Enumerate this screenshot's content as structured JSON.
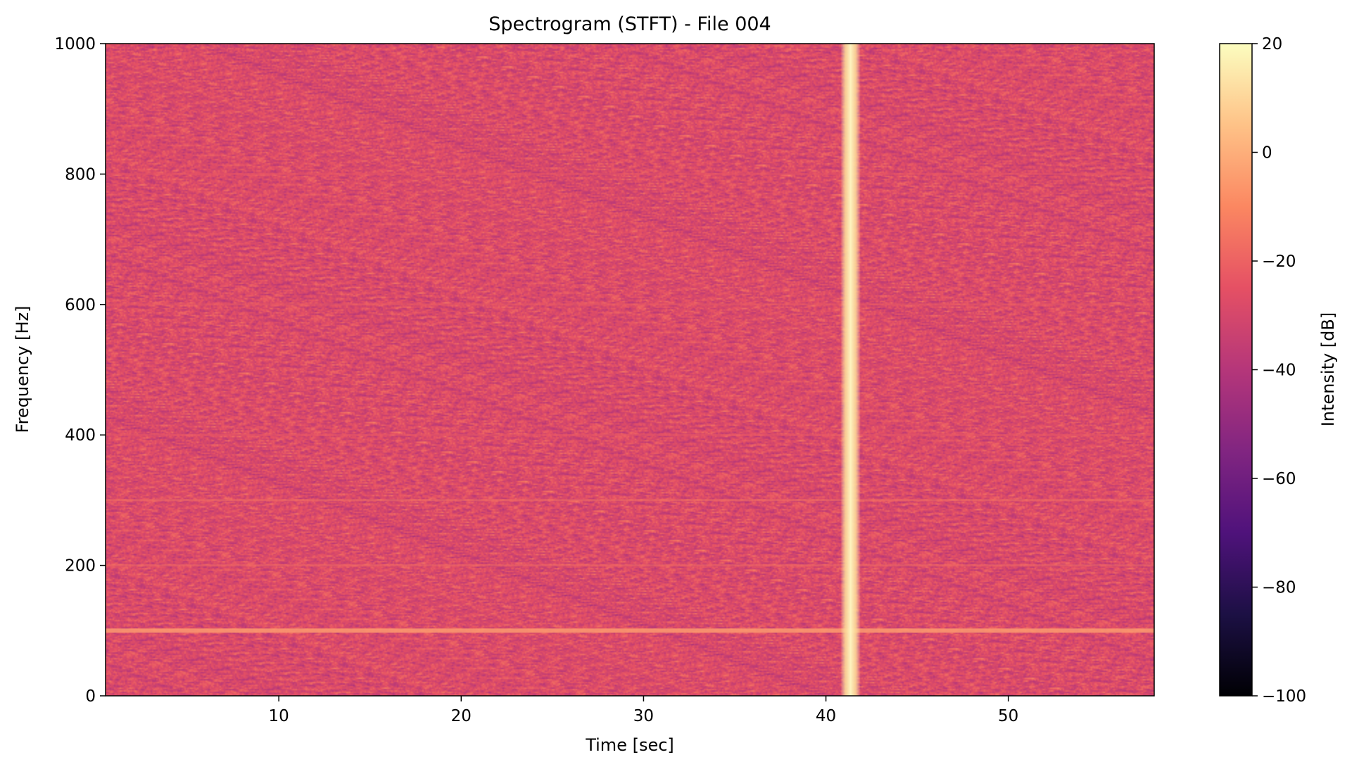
{
  "chart_data": {
    "type": "heatmap",
    "title": "Spectrogram (STFT) - File 004",
    "xlabel": "Time [sec]",
    "ylabel": "Frequency [Hz]",
    "xlim": [
      0.5,
      58
    ],
    "ylim": [
      0,
      1000
    ],
    "x_ticks": [
      10,
      20,
      30,
      40,
      50
    ],
    "y_ticks": [
      0,
      200,
      400,
      600,
      800,
      1000
    ],
    "colormap": "magma",
    "colorbar": {
      "label": "Intensity [dB]",
      "range": [
        -100,
        20
      ],
      "ticks": [
        20,
        0,
        -20,
        -40,
        -60,
        -80,
        -100
      ],
      "tick_labels": [
        "20",
        "0",
        "−20",
        "−40",
        "−60",
        "−80",
        "−100"
      ]
    },
    "background_level_db": -28,
    "harmonic_lines": [
      {
        "frequency": 100,
        "level_db": -5
      },
      {
        "frequency": 200,
        "level_db": -18
      },
      {
        "frequency": 300,
        "level_db": -16
      },
      {
        "frequency": 400,
        "level_db": -23
      },
      {
        "frequency": 600,
        "level_db": -22
      },
      {
        "frequency": 800,
        "level_db": -24
      }
    ],
    "broadband_event": {
      "time_start": 40.8,
      "time_end": 41.9,
      "peak_time": 41.35,
      "level_db": 15
    },
    "grid": false
  }
}
